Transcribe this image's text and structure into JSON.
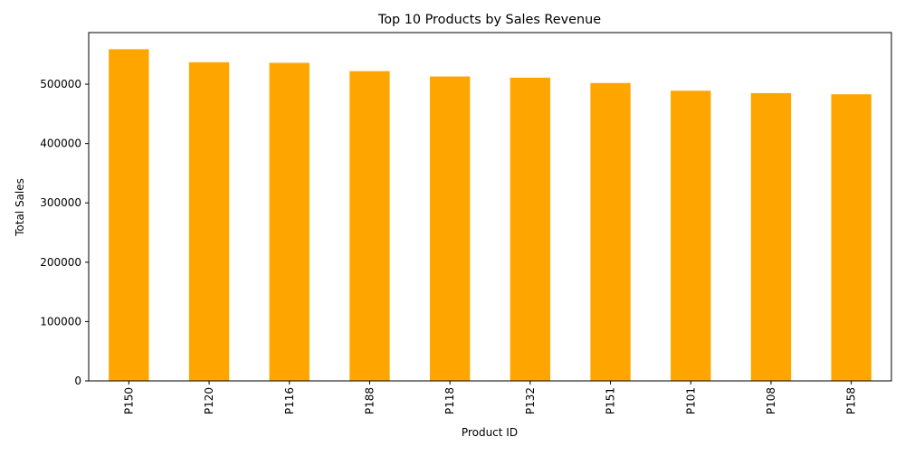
{
  "chart_data": {
    "type": "bar",
    "title": "Top 10 Products by Sales Revenue",
    "xlabel": "Product ID",
    "ylabel": "Total Sales",
    "categories": [
      "P150",
      "P120",
      "P116",
      "P188",
      "P118",
      "P132",
      "P151",
      "P101",
      "P108",
      "P158"
    ],
    "values": [
      559000,
      537000,
      536000,
      522000,
      513000,
      511000,
      502000,
      489000,
      485000,
      483000
    ],
    "ylim": [
      0,
      587000
    ],
    "yticks": [
      0,
      100000,
      200000,
      300000,
      400000,
      500000
    ],
    "ytick_labels": [
      "0",
      "100000",
      "200000",
      "300000",
      "400000",
      "500000"
    ],
    "bar_color": "#ffa500",
    "grid": false,
    "legend": "none"
  }
}
